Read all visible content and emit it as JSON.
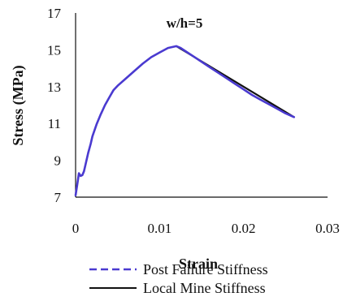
{
  "chart_data": {
    "type": "line",
    "title": "w/h=5",
    "xlabel": "Strain",
    "ylabel": "Stress (MPa)",
    "xlim": [
      0,
      0.03
    ],
    "ylim": [
      7,
      17
    ],
    "x_ticks": [
      "0",
      "0.01",
      "0.02",
      "0.03"
    ],
    "y_ticks": [
      "7",
      "9",
      "11",
      "13",
      "15",
      "17"
    ],
    "grid": false,
    "legend_position": "bottom",
    "series": [
      {
        "name": "Post Failure Stiffness",
        "color": "#4a3ad0",
        "style": "dashed",
        "x": [
          0,
          0.0002,
          0.0004,
          0.0006,
          0.0008,
          0.001,
          0.0012,
          0.0015,
          0.0018,
          0.002,
          0.0025,
          0.003,
          0.0035,
          0.004,
          0.0045,
          0.005,
          0.006,
          0.007,
          0.008,
          0.009,
          0.01,
          0.011,
          0.0115,
          0.012,
          0.0125,
          0.013,
          0.014,
          0.015,
          0.016,
          0.017,
          0.018,
          0.019,
          0.02,
          0.021,
          0.022,
          0.023,
          0.024,
          0.025,
          0.026
        ],
        "y": [
          7.1,
          7.7,
          8.3,
          8.15,
          8.2,
          8.4,
          8.8,
          9.4,
          9.9,
          10.3,
          10.95,
          11.5,
          12.0,
          12.4,
          12.8,
          13.05,
          13.45,
          13.85,
          14.25,
          14.6,
          14.85,
          15.1,
          15.15,
          15.2,
          15.1,
          14.95,
          14.65,
          14.35,
          14.05,
          13.75,
          13.45,
          13.15,
          12.85,
          12.55,
          12.3,
          12.05,
          11.8,
          11.55,
          11.35
        ]
      },
      {
        "name": "Local Mine Stiffness",
        "color": "#111111",
        "style": "solid",
        "x": [
          0.012,
          0.026
        ],
        "y": [
          15.2,
          11.35
        ]
      }
    ]
  }
}
